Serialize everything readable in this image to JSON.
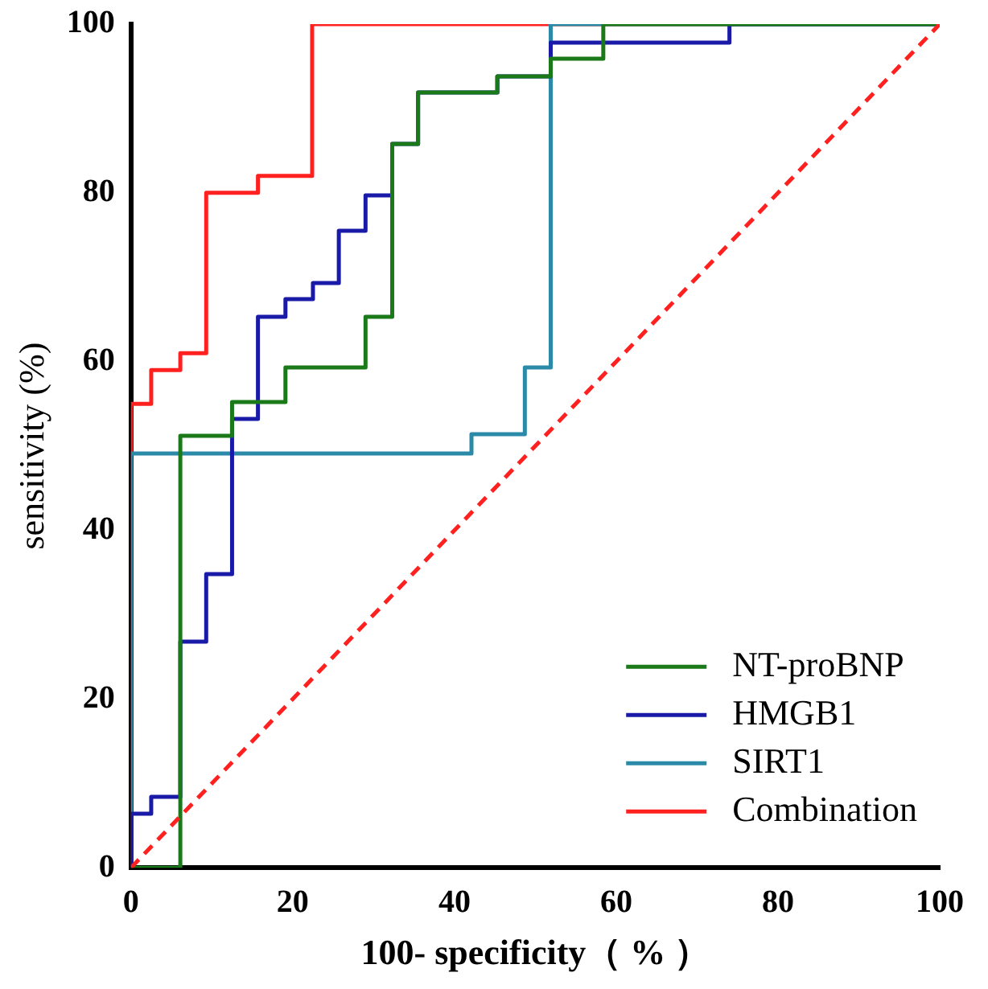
{
  "chart_data": {
    "type": "line",
    "xlabel": "100- specificity（ % ）",
    "ylabel": "sensitivity (%)",
    "xlim": [
      0,
      100
    ],
    "ylim": [
      0,
      100
    ],
    "xticks": [
      0,
      20,
      40,
      60,
      80,
      100
    ],
    "yticks": [
      0,
      20,
      40,
      60,
      80,
      100
    ],
    "grid": false,
    "legend": "bottom right",
    "marker": "none",
    "series": [
      {
        "name": "NT-proBNP",
        "color": "#1a7a1a",
        "x": [
          0,
          6.1,
          6.1,
          12.5,
          12.5,
          19.1,
          19.1,
          29.0,
          29.0,
          32.3,
          32.3,
          35.5,
          35.5,
          45.3,
          45.3,
          51.9,
          51.9,
          58.4,
          58.4,
          100
        ],
        "values": [
          0,
          0,
          51.2,
          51.2,
          55.2,
          55.2,
          59.3,
          59.3,
          65.3,
          65.3,
          85.8,
          85.8,
          91.9,
          91.9,
          93.8,
          93.8,
          95.9,
          95.9,
          100,
          100
        ]
      },
      {
        "name": "HMGB1",
        "color": "#1a1aa8",
        "x": [
          0,
          0,
          2.5,
          2.5,
          6.1,
          6.1,
          9.3,
          9.3,
          12.5,
          12.5,
          15.7,
          15.7,
          19.1,
          19.1,
          22.5,
          22.5,
          25.7,
          25.7,
          29.0,
          29.0,
          32.3,
          32.3,
          35.5,
          35.5,
          45.3,
          45.3,
          51.9,
          51.9,
          74,
          74,
          100
        ],
        "values": [
          0,
          6.4,
          6.4,
          8.4,
          8.4,
          26.8,
          26.8,
          34.8,
          34.8,
          53.2,
          53.2,
          65.3,
          65.3,
          67.4,
          67.4,
          69.3,
          69.3,
          75.5,
          75.5,
          79.7,
          79.7,
          85.8,
          85.8,
          91.9,
          91.9,
          93.8,
          93.8,
          97.8,
          97.8,
          100,
          100
        ]
      },
      {
        "name": "SIRT1",
        "color": "#2a8aa8",
        "x": [
          0,
          0,
          42.1,
          42.1,
          48.7,
          48.7,
          51.9,
          51.9,
          100
        ],
        "values": [
          0,
          49.1,
          49.1,
          51.4,
          51.4,
          59.3,
          59.3,
          100,
          100
        ]
      },
      {
        "name": "Combination",
        "color": "#ff2020",
        "x": [
          0,
          0,
          2.5,
          2.5,
          6.1,
          6.1,
          9.3,
          9.3,
          15.7,
          15.7,
          22.4,
          22.4,
          100
        ],
        "values": [
          0,
          55,
          55,
          59,
          59,
          61,
          61,
          80,
          80,
          82,
          82,
          100,
          100
        ]
      },
      {
        "type": "line",
        "color": "#ff2020",
        "line_style": "dashed",
        "x": [
          0,
          100
        ],
        "values": [
          0,
          100
        ]
      }
    ]
  }
}
